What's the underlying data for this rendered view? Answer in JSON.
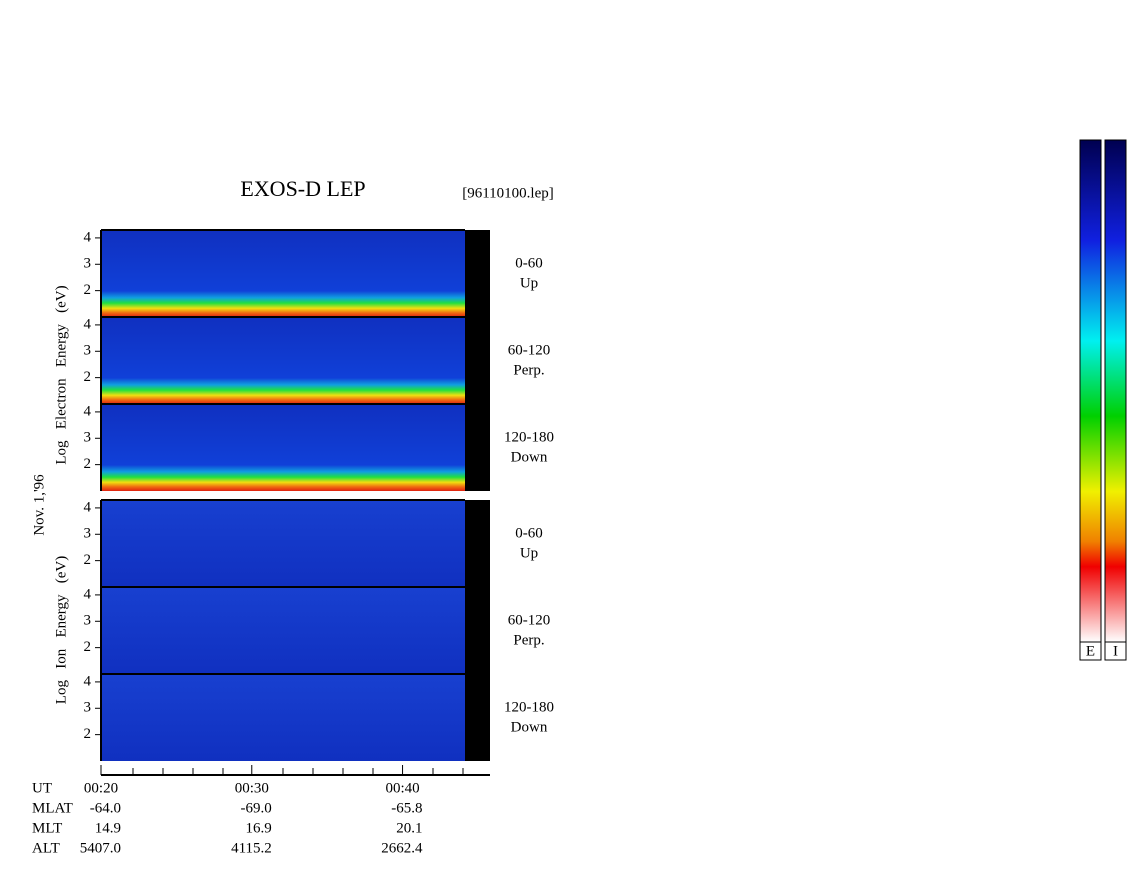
{
  "title": "EXOS-D LEP",
  "file": "[96110100.lep]",
  "date": "Nov. 1,'96",
  "electron_label": "Log   Electron   Energy   (eV)",
  "ion_label": "Log   Ion   Energy   (eV)",
  "ylim": [
    1,
    4.3
  ],
  "yticks": [
    2,
    3,
    4
  ],
  "panels": [
    {
      "group": "electron",
      "angle": "0-60",
      "dir": "Up"
    },
    {
      "group": "electron",
      "angle": "60-120",
      "dir": "Perp."
    },
    {
      "group": "electron",
      "angle": "120-180",
      "dir": "Down"
    },
    {
      "group": "ion",
      "angle": "0-60",
      "dir": "Up"
    },
    {
      "group": "ion",
      "angle": "60-120",
      "dir": "Perp."
    },
    {
      "group": "ion",
      "angle": "120-180",
      "dir": "Down"
    }
  ],
  "xlim": [
    20,
    45.8
  ],
  "xticks": [
    {
      "value": 20,
      "label": "00:20"
    },
    {
      "value": 30,
      "label": "00:30"
    },
    {
      "value": 40,
      "label": "00:40"
    }
  ],
  "ut_label": "UT",
  "rows": [
    [
      "MLAT",
      "-64.0",
      "-69.0",
      "-65.8"
    ],
    [
      "MLT",
      "14.9",
      "16.9",
      "20.1"
    ],
    [
      "ALT",
      "5407.0",
      "4115.2",
      "2662.4"
    ]
  ],
  "colorbars": [
    "E",
    "I"
  ]
}
